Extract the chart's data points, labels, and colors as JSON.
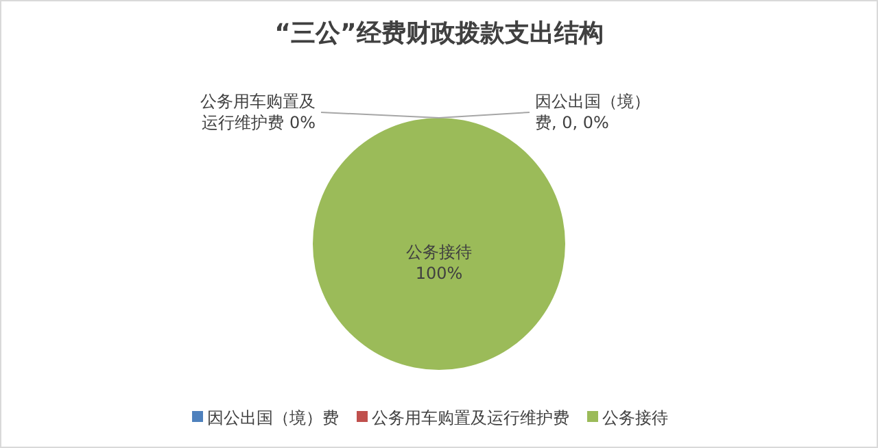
{
  "chart_data": {
    "type": "pie",
    "title": "“三公”经费财政拨款支出结构",
    "categories": [
      "因公出国（境）费",
      "公务用车购置及运行维护费",
      "公务接待"
    ],
    "values": [
      0,
      0,
      100
    ],
    "colors": [
      "#4f81bd",
      "#c0504d",
      "#9bbb59"
    ],
    "value_labels": [
      "因公出国（境）费, 0, 0%",
      "公务用车购置及运行维护费 0%",
      "公务接待 100%"
    ],
    "legend": "bottom"
  }
}
